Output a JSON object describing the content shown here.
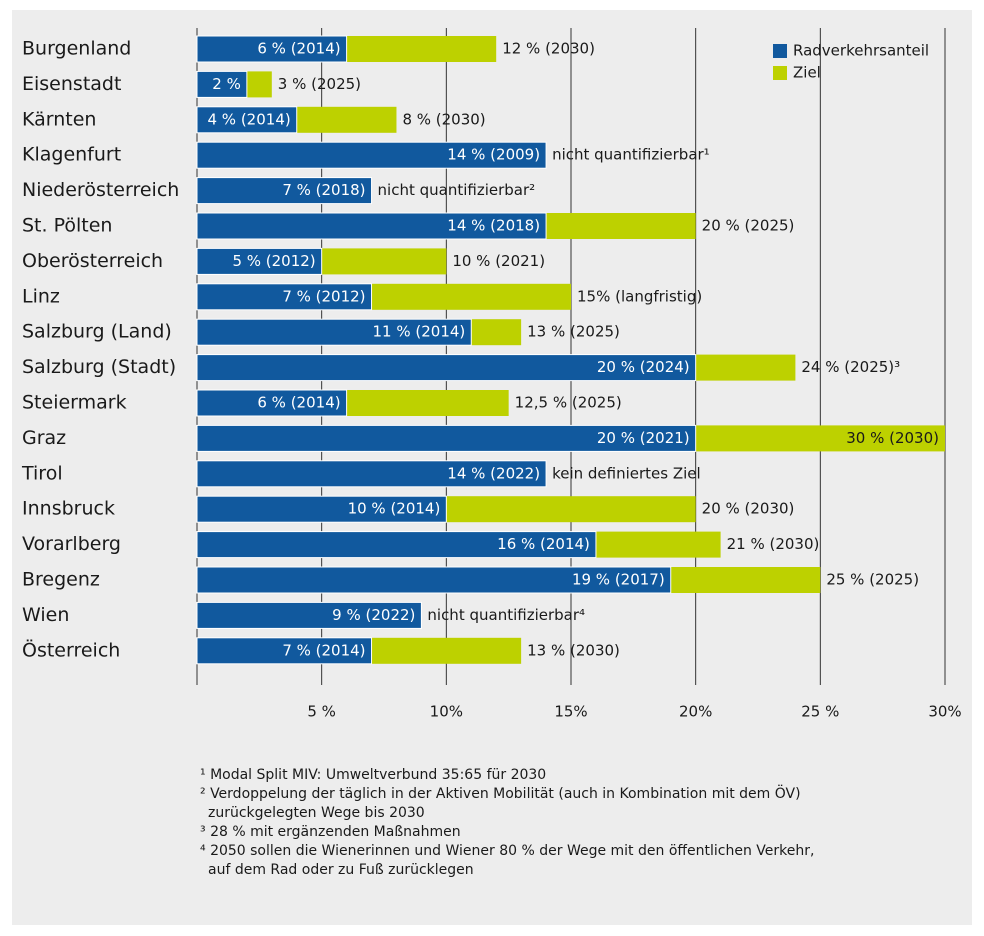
{
  "chart_data": {
    "type": "bar",
    "orientation": "horizontal",
    "categories": [
      "Burgenland",
      "Eisenstadt",
      "Kärnten",
      "Klagenfurt",
      "Niederösterreich",
      "St. Pölten",
      "Oberösterreich",
      "Linz",
      "Salzburg (Land)",
      "Salzburg (Stadt)",
      "Steiermark",
      "Graz",
      "Tirol",
      "Innsbruck",
      "Vorarlberg",
      "Bregenz",
      "Wien",
      "Österreich"
    ],
    "series": [
      {
        "name": "Radverkehrsanteil",
        "color": "#11599e",
        "values": [
          6,
          2,
          4,
          14,
          7,
          14,
          5,
          7,
          11,
          20,
          6,
          20,
          14,
          10,
          16,
          19,
          9,
          7
        ],
        "value_labels": [
          "6 % (2014)",
          "2 %",
          "4 % (2014)",
          "14 % (2009)",
          "7 % (2018)",
          "14 % (2018)",
          "5 % (2012)",
          "7 % (2012)",
          "11 % (2014)",
          "20 % (2024)",
          "6 % (2014)",
          "20 % (2021)",
          "14 % (2022)",
          "10 % (2014)",
          "16 % (2014)",
          "19 % (2017)",
          "9 % (2022)",
          "7 % (2014)"
        ]
      },
      {
        "name": "Ziel",
        "color": "#bdd100",
        "values": [
          12,
          3,
          8,
          null,
          null,
          20,
          10,
          15,
          13,
          24,
          12.5,
          30,
          null,
          20,
          21,
          25,
          null,
          13
        ],
        "value_labels": [
          "12 % (2030)",
          "3 % (2025)",
          "8 % (2030)",
          "nicht quantifizierbar¹",
          "nicht quantifizierbar²",
          "20 % (2025)",
          "10 % (2021)",
          "15% (langfristig)",
          "13 % (2025)",
          "24 % (2025)³",
          "12,5 % (2025)",
          "30 % (2030)",
          "kein definiertes Ziel",
          "20 % (2030)",
          "21 % (2030)",
          "25 % (2025)",
          "nicht quantifizierbar⁴",
          "13 % (2030)"
        ]
      }
    ],
    "xlim": [
      0,
      30
    ],
    "xticks": [
      {
        "value": 5,
        "label": "5 %"
      },
      {
        "value": 10,
        "label": "10%"
      },
      {
        "value": 15,
        "label": "15%"
      },
      {
        "value": 20,
        "label": "20%"
      },
      {
        "value": 25,
        "label": "25 %"
      },
      {
        "value": 30,
        "label": "30%"
      }
    ],
    "grid": true,
    "legend": "top-right",
    "footnotes": [
      [
        "¹ Modal Split MIV: Umweltverbund 35:65 für 2030"
      ],
      [
        "² Verdoppelung der täglich in der Aktiven Mobilität (auch in Kombination mit dem ÖV)",
        "zurückgelegten Wege bis 2030"
      ],
      [
        "³ 28 % mit ergänzenden Maßnahmen"
      ],
      [
        "⁴ 2050 sollen die Wienerinnen und Wiener 80 % der Wege mit den öffentlichen Verkehr,",
        "auf dem Rad oder zu Fuß zurücklegen"
      ]
    ]
  }
}
